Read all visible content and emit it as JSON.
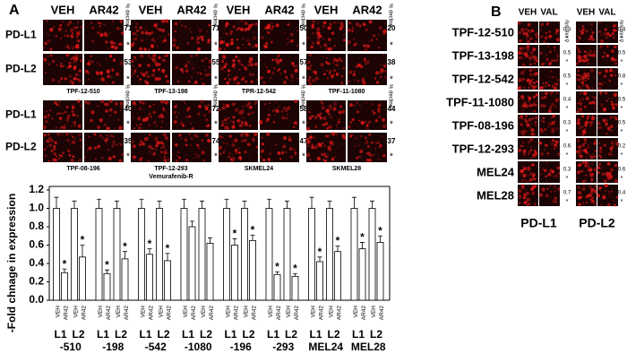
{
  "panel_a": {
    "label": "A",
    "headers": [
      "VEH",
      "AR42"
    ],
    "decline_label": "% decline",
    "asterisk": "*",
    "blocks": [
      {
        "rows": [
          "PD-L1",
          "PD-L2"
        ],
        "groups": [
          {
            "caption": [
              "TPF-12-510"
            ],
            "decline": [
              71,
              53
            ]
          },
          {
            "caption": [
              "TPF-13-198"
            ],
            "decline": [
              71,
              55
            ]
          },
          {
            "caption": [
              "TPR-12-542"
            ],
            "decline": [
              50,
              57
            ]
          },
          {
            "caption": [
              "TPF-11-1080"
            ],
            "decline": [
              20,
              38
            ]
          }
        ]
      },
      {
        "rows": [
          "PD-L1",
          "PD-L2"
        ],
        "groups": [
          {
            "caption": [
              "TPF-08-196"
            ],
            "decline": [
              40,
              35
            ]
          },
          {
            "caption": [
              "TPF-12-293",
              "Vemurafenib-R"
            ],
            "decline": [
              72,
              74
            ]
          },
          {
            "caption": [
              "SKMEL24"
            ],
            "decline": [
              58,
              47
            ]
          },
          {
            "caption": [
              "SKMEL28"
            ],
            "decline": [
              44,
              37
            ]
          }
        ]
      }
    ]
  },
  "chart_data": {
    "type": "bar",
    "y_label": "-Fold chnage in expression",
    "categories": [
      "-510",
      "-198",
      "-542",
      "-1080",
      "-196",
      "-293",
      "MEL24",
      "MEL28"
    ],
    "sublabels": [
      "L1",
      "L2"
    ],
    "series": [
      {
        "name": "VEH",
        "color": "#ffffff",
        "values": [
          1.0,
          1.0,
          1.0,
          1.0,
          1.0,
          1.0,
          1.0,
          1.0
        ],
        "errors": [
          0.12,
          0.1,
          0.1,
          0.1,
          0.1,
          0.1,
          0.12,
          0.12
        ],
        "labels": [
          null,
          null,
          null,
          null,
          null,
          null,
          null,
          null
        ]
      },
      {
        "name": "AR42",
        "color": "#ffffff",
        "values": [
          0.3,
          0.29,
          0.5,
          0.8,
          0.6,
          0.28,
          0.42,
          0.56
        ],
        "errors": [
          0.04,
          0.04,
          0.06,
          0.06,
          0.07,
          0.03,
          0.05,
          0.07
        ],
        "labels": [
          "*",
          "*",
          "*",
          null,
          "*",
          "*",
          "*",
          "*"
        ]
      },
      {
        "name": "VEH",
        "color": "#ffffff",
        "values": [
          1.0,
          1.0,
          1.0,
          1.0,
          1.0,
          1.0,
          1.0,
          1.0
        ],
        "errors": [
          0.08,
          0.08,
          0.08,
          0.08,
          0.08,
          0.08,
          0.08,
          0.08
        ],
        "labels": [
          null,
          null,
          null,
          null,
          null,
          null,
          null,
          null
        ]
      },
      {
        "name": "AR42",
        "color": "#ffffff",
        "values": [
          0.47,
          0.45,
          0.43,
          0.62,
          0.65,
          0.26,
          0.53,
          0.63
        ],
        "errors": [
          0.13,
          0.08,
          0.08,
          0.06,
          0.06,
          0.03,
          0.06,
          0.07
        ],
        "labels": [
          "*",
          "*",
          "*",
          null,
          "*",
          "*",
          "*",
          "*"
        ]
      }
    ],
    "ylim": [
      0,
      1.2
    ],
    "yticks": [
      {
        "value": 0,
        "label": "0.0"
      },
      0.2,
      0.4,
      0.6,
      0.8,
      {
        "value": 1,
        "label": "1.0"
      },
      1.2
    ]
  },
  "panel_b": {
    "label": "B",
    "asterisk": "*",
    "delta_label": "Δ intensity",
    "row_labels": [
      "TPF-12-510",
      "TPF-13-198",
      "TPF-12-542",
      "TPF-11-1080",
      "TPF-08-196",
      "TPF-12-293",
      "MEL24",
      "MEL28"
    ],
    "blocks": [
      {
        "footer": "PD-L1",
        "headers": [
          "VEH",
          "VAL"
        ],
        "values": [
          0.3,
          0.5,
          0.5,
          0.4,
          0.3,
          0.6,
          0.3,
          0.7
        ]
      },
      {
        "footer": "PD-L2",
        "headers": [
          "VEH",
          "VAL"
        ],
        "values": [
          0.4,
          0.5,
          0.8,
          0.5,
          0.5,
          0.2,
          0.6,
          0.4
        ]
      }
    ]
  }
}
